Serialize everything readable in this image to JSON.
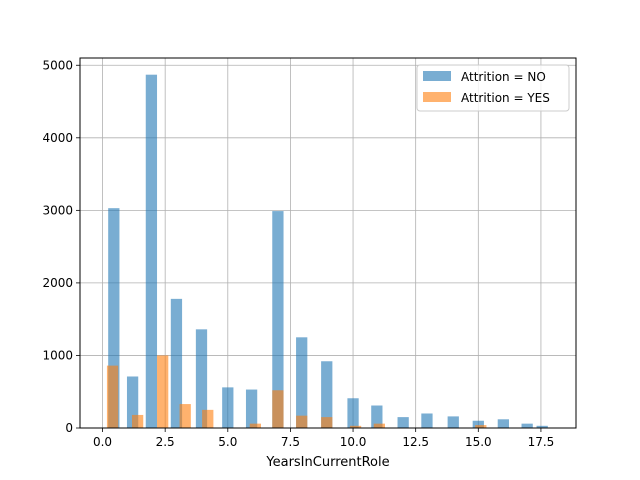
{
  "chart_data": {
    "type": "bar",
    "title": "",
    "xlabel": "YearsInCurrentRole",
    "ylabel": "",
    "xlim": [
      -0.9,
      18.9
    ],
    "ylim": [
      0,
      5100
    ],
    "grid": true,
    "legend_position": "upper-right",
    "bar_width": 0.45,
    "xticks": [
      0,
      2.5,
      5,
      7.5,
      10,
      12.5,
      15,
      17.5
    ],
    "xtick_labels": [
      "0.0",
      "2.5",
      "5.0",
      "7.5",
      "10.0",
      "12.5",
      "15.0",
      "17.5"
    ],
    "yticks": [
      0,
      1000,
      2000,
      3000,
      4000,
      5000
    ],
    "ytick_labels": [
      "0",
      "1000",
      "2000",
      "3000",
      "4000",
      "5000"
    ],
    "series": [
      {
        "name": "Attrition = NO",
        "color": "#1f77b4",
        "opacity": 0.6,
        "x": [
          0.45,
          1.2,
          1.95,
          2.95,
          3.95,
          5.0,
          5.95,
          7.0,
          7.95,
          8.95,
          10.0,
          10.95,
          12.0,
          12.95,
          14.0,
          15.0,
          16.0,
          16.95,
          17.55
        ],
        "values": [
          3030,
          710,
          4870,
          1780,
          1360,
          560,
          530,
          2990,
          1250,
          920,
          410,
          310,
          150,
          200,
          160,
          100,
          120,
          60,
          30
        ]
      },
      {
        "name": "Attrition = YES",
        "color": "#ff7f0e",
        "opacity": 0.6,
        "x": [
          0.4,
          1.4,
          2.4,
          3.3,
          4.2,
          6.1,
          7.0,
          7.95,
          8.95,
          10.1,
          11.05,
          15.1
        ],
        "values": [
          860,
          180,
          1000,
          330,
          250,
          60,
          520,
          170,
          150,
          30,
          60,
          40
        ]
      }
    ]
  }
}
